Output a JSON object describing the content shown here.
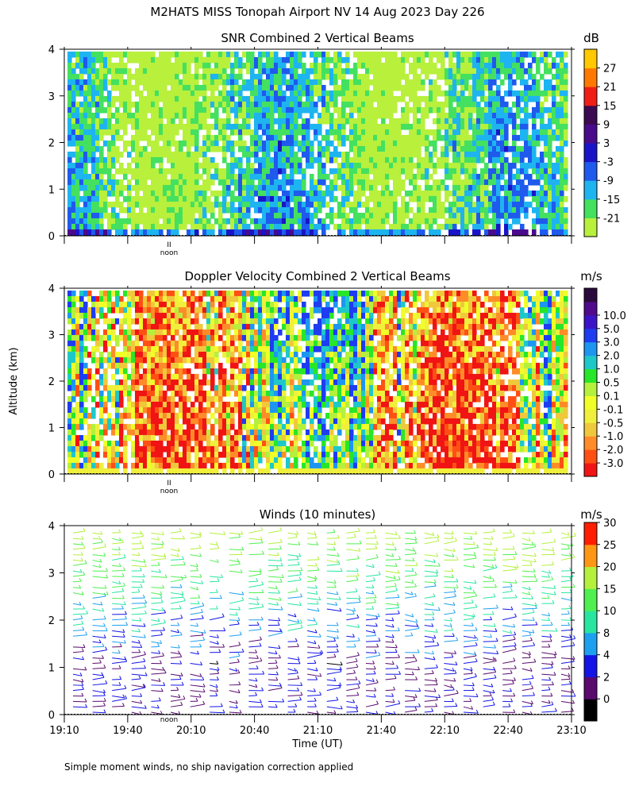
{
  "title": "M2HATS MISS Tonopah Airport NV  14 Aug 2023 Day 226",
  "ylabel": "Altitude (km)",
  "xlabel": "Time (UT)",
  "footnote": "Simple moment winds, no ship navigation correction applied",
  "noon_label": "noon",
  "noon_marker": "II",
  "time_ticks": [
    "19:10",
    "19:40",
    "20:10",
    "20:40",
    "21:10",
    "21:40",
    "22:10",
    "22:40",
    "23:10"
  ],
  "alt_ticks": [
    "0",
    "1",
    "2",
    "3",
    "4"
  ],
  "chart_data": [
    {
      "type": "heatmap",
      "title": "SNR Combined 2 Vertical Beams",
      "unit": "dB",
      "xlim": [
        "19:10",
        "23:10"
      ],
      "ylim": [
        0,
        4
      ],
      "colorbar": {
        "labels": [
          "-21",
          "-15",
          "-9",
          "-3",
          "3",
          "9",
          "15",
          "21",
          "27"
        ],
        "colors": [
          "#b8f03c",
          "#44e060",
          "#1eb4f0",
          "#1e5aec",
          "#1a14c8",
          "#4a0a8c",
          "#3c0a50",
          "#f01e14",
          "#ff7800",
          "#ffc800"
        ]
      }
    },
    {
      "type": "heatmap",
      "title": "Doppler Velocity Combined 2 Vertical Beams",
      "unit": "m/s",
      "xlim": [
        "19:10",
        "23:10"
      ],
      "ylim": [
        0,
        4
      ],
      "colorbar": {
        "labels": [
          "-3.0",
          "-2.0",
          "-1.0",
          "-0.5",
          "-0.1",
          "0.1",
          "0.5",
          "1.0",
          "2.0",
          "3.0",
          "5.0",
          "10.0"
        ],
        "colors": [
          "#f01414",
          "#ff5014",
          "#ff8c28",
          "#f0c83c",
          "#f0f03c",
          "#f0ff28",
          "#b4f03c",
          "#28e628",
          "#1ec8c8",
          "#1e96f0",
          "#1e3cf0",
          "#3c14c8",
          "#500a8c",
          "#2a0a3c"
        ]
      }
    },
    {
      "type": "scatter",
      "title": "Winds (10 minutes)",
      "unit": "m/s",
      "xlim": [
        "19:10",
        "23:10"
      ],
      "ylim": [
        0,
        4
      ],
      "colorbar": {
        "labels": [
          "0",
          "2",
          "4",
          "8",
          "10",
          "15",
          "20",
          "25",
          "30"
        ],
        "colors": [
          "#000000",
          "#5a0a6e",
          "#1414e6",
          "#1ea0f0",
          "#28e6a0",
          "#50f050",
          "#b4f03c",
          "#ff9614",
          "#ff1e00"
        ]
      }
    }
  ]
}
